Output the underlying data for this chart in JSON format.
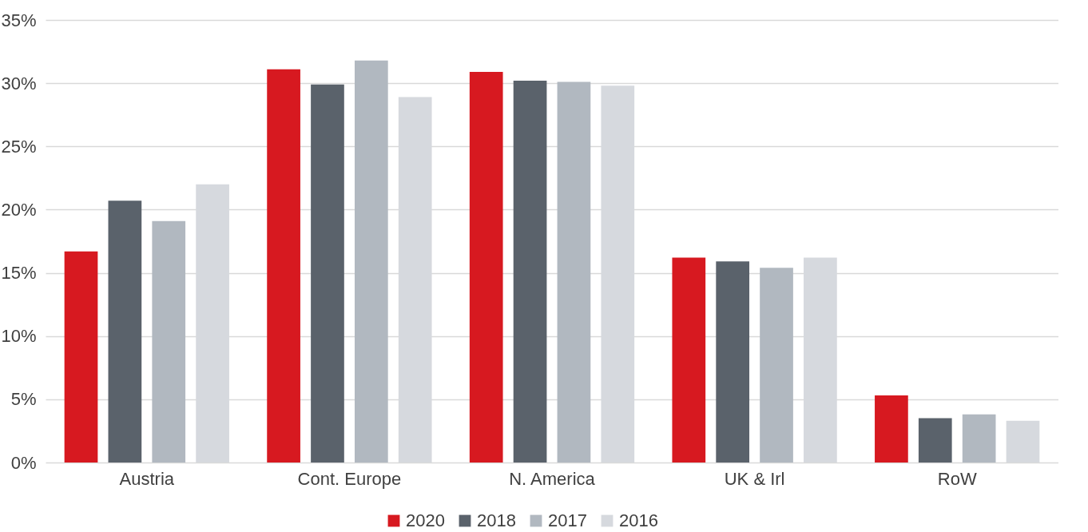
{
  "chart_data": {
    "type": "bar",
    "categories": [
      "Austria",
      "Cont. Europe",
      "N. America",
      "UK & Irl",
      "RoW"
    ],
    "series": [
      {
        "name": "2020",
        "color": "#d71920",
        "values": [
          16.7,
          31.1,
          30.9,
          16.2,
          5.3
        ]
      },
      {
        "name": "2018",
        "color": "#5a626b",
        "values": [
          20.7,
          29.9,
          30.2,
          15.9,
          3.5
        ]
      },
      {
        "name": "2017",
        "color": "#b1b8c0",
        "values": [
          19.1,
          31.8,
          30.1,
          15.4,
          3.8
        ]
      },
      {
        "name": "2016",
        "color": "#d6d9de",
        "values": [
          22.0,
          28.9,
          29.8,
          16.2,
          3.3
        ]
      }
    ],
    "ylim": [
      0,
      35
    ],
    "yticks": [
      {
        "value": 0,
        "label": "0%"
      },
      {
        "value": 5,
        "label": "5%"
      },
      {
        "value": 10,
        "label": "10%"
      },
      {
        "value": 15,
        "label": "15%"
      },
      {
        "value": 20,
        "label": "20%"
      },
      {
        "value": 25,
        "label": "25%"
      },
      {
        "value": 30,
        "label": "30%"
      },
      {
        "value": 35,
        "label": "35%"
      }
    ],
    "grid": "y",
    "legend": "bottom"
  }
}
